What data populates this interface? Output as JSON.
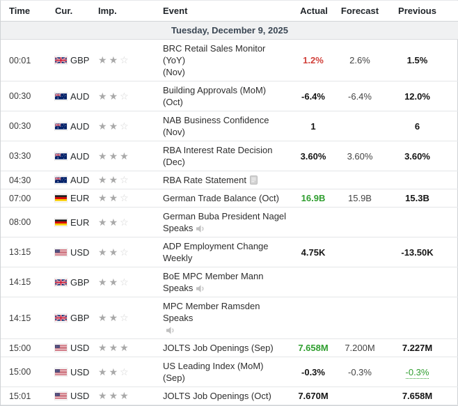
{
  "colors": {
    "positive": "#2f9e2f",
    "negative": "#d1403a",
    "neutral": "#141414",
    "star_on": "#a9a9a9",
    "star_off": "#d3d3d3"
  },
  "table": {
    "columns": [
      "Time",
      "Cur.",
      "Imp.",
      "Event",
      "Actual",
      "Forecast",
      "Previous"
    ],
    "date_header": "Tuesday, December 9, 2025",
    "importance_max": 3,
    "rows": [
      {
        "time": "00:01",
        "currency": "GBP",
        "importance": 2,
        "event_lines": [
          "BRC Retail Sales Monitor (YoY)",
          "(Nov)"
        ],
        "icon": null,
        "icon_line": -1,
        "actual": {
          "text": "1.2%",
          "state": "negative"
        },
        "forecast": "2.6%",
        "previous": {
          "text": "1.5%",
          "state": "neutral",
          "revised": false
        }
      },
      {
        "time": "00:30",
        "currency": "AUD",
        "importance": 2,
        "event_lines": [
          "Building Approvals (MoM) (Oct)"
        ],
        "icon": null,
        "icon_line": -1,
        "actual": {
          "text": "-6.4%",
          "state": "neutral"
        },
        "forecast": "-6.4%",
        "previous": {
          "text": "12.0%",
          "state": "neutral",
          "revised": false
        }
      },
      {
        "time": "00:30",
        "currency": "AUD",
        "importance": 2,
        "event_lines": [
          "NAB Business Confidence (Nov)"
        ],
        "icon": null,
        "icon_line": -1,
        "actual": {
          "text": "1",
          "state": "neutral"
        },
        "forecast": "",
        "previous": {
          "text": "6",
          "state": "neutral",
          "revised": false
        }
      },
      {
        "time": "03:30",
        "currency": "AUD",
        "importance": 3,
        "event_lines": [
          "RBA Interest Rate Decision",
          "(Dec)"
        ],
        "icon": null,
        "icon_line": -1,
        "actual": {
          "text": "3.60%",
          "state": "neutral"
        },
        "forecast": "3.60%",
        "previous": {
          "text": "3.60%",
          "state": "neutral",
          "revised": false
        }
      },
      {
        "time": "04:30",
        "currency": "AUD",
        "importance": 2,
        "event_lines": [
          "RBA Rate Statement"
        ],
        "icon": "report",
        "icon_line": 0,
        "actual": {
          "text": "",
          "state": "neutral"
        },
        "forecast": "",
        "previous": {
          "text": "",
          "state": "neutral",
          "revised": false
        }
      },
      {
        "time": "07:00",
        "currency": "EUR",
        "importance": 2,
        "event_lines": [
          "German Trade Balance (Oct)"
        ],
        "icon": null,
        "icon_line": -1,
        "actual": {
          "text": "16.9B",
          "state": "positive"
        },
        "forecast": "15.9B",
        "previous": {
          "text": "15.3B",
          "state": "neutral",
          "revised": false
        }
      },
      {
        "time": "08:00",
        "currency": "EUR",
        "importance": 2,
        "event_lines": [
          "German Buba President Nagel",
          "Speaks"
        ],
        "icon": "speaker",
        "icon_line": 1,
        "actual": {
          "text": "",
          "state": "neutral"
        },
        "forecast": "",
        "previous": {
          "text": "",
          "state": "neutral",
          "revised": false
        }
      },
      {
        "time": "13:15",
        "currency": "USD",
        "importance": 2,
        "event_lines": [
          "ADP Employment Change",
          "Weekly"
        ],
        "icon": null,
        "icon_line": -1,
        "actual": {
          "text": "4.75K",
          "state": "neutral"
        },
        "forecast": "",
        "previous": {
          "text": "-13.50K",
          "state": "neutral",
          "revised": false
        }
      },
      {
        "time": "14:15",
        "currency": "GBP",
        "importance": 2,
        "event_lines": [
          "BoE MPC Member Mann",
          "Speaks"
        ],
        "icon": "speaker",
        "icon_line": 1,
        "actual": {
          "text": "",
          "state": "neutral"
        },
        "forecast": "",
        "previous": {
          "text": "",
          "state": "neutral",
          "revised": false
        }
      },
      {
        "time": "14:15",
        "currency": "GBP",
        "importance": 2,
        "event_lines": [
          "MPC Member Ramsden Speaks",
          ""
        ],
        "icon": "speaker",
        "icon_line": 1,
        "actual": {
          "text": "",
          "state": "neutral"
        },
        "forecast": "",
        "previous": {
          "text": "",
          "state": "neutral",
          "revised": false
        }
      },
      {
        "time": "15:00",
        "currency": "USD",
        "importance": 3,
        "event_lines": [
          "JOLTS Job Openings (Sep)"
        ],
        "icon": null,
        "icon_line": -1,
        "actual": {
          "text": "7.658M",
          "state": "positive"
        },
        "forecast": "7.200M",
        "previous": {
          "text": "7.227M",
          "state": "neutral",
          "revised": false
        }
      },
      {
        "time": "15:00",
        "currency": "USD",
        "importance": 2,
        "event_lines": [
          "US Leading Index (MoM) (Sep)"
        ],
        "icon": null,
        "icon_line": -1,
        "actual": {
          "text": "-0.3%",
          "state": "neutral"
        },
        "forecast": "-0.3%",
        "previous": {
          "text": "-0.3%",
          "state": "positive",
          "revised": true
        }
      },
      {
        "time": "15:01",
        "currency": "USD",
        "importance": 3,
        "event_lines": [
          "JOLTS Job Openings (Oct)"
        ],
        "icon": null,
        "icon_line": -1,
        "actual": {
          "text": "7.670M",
          "state": "neutral"
        },
        "forecast": "",
        "previous": {
          "text": "7.658M",
          "state": "neutral",
          "revised": false
        }
      }
    ]
  }
}
